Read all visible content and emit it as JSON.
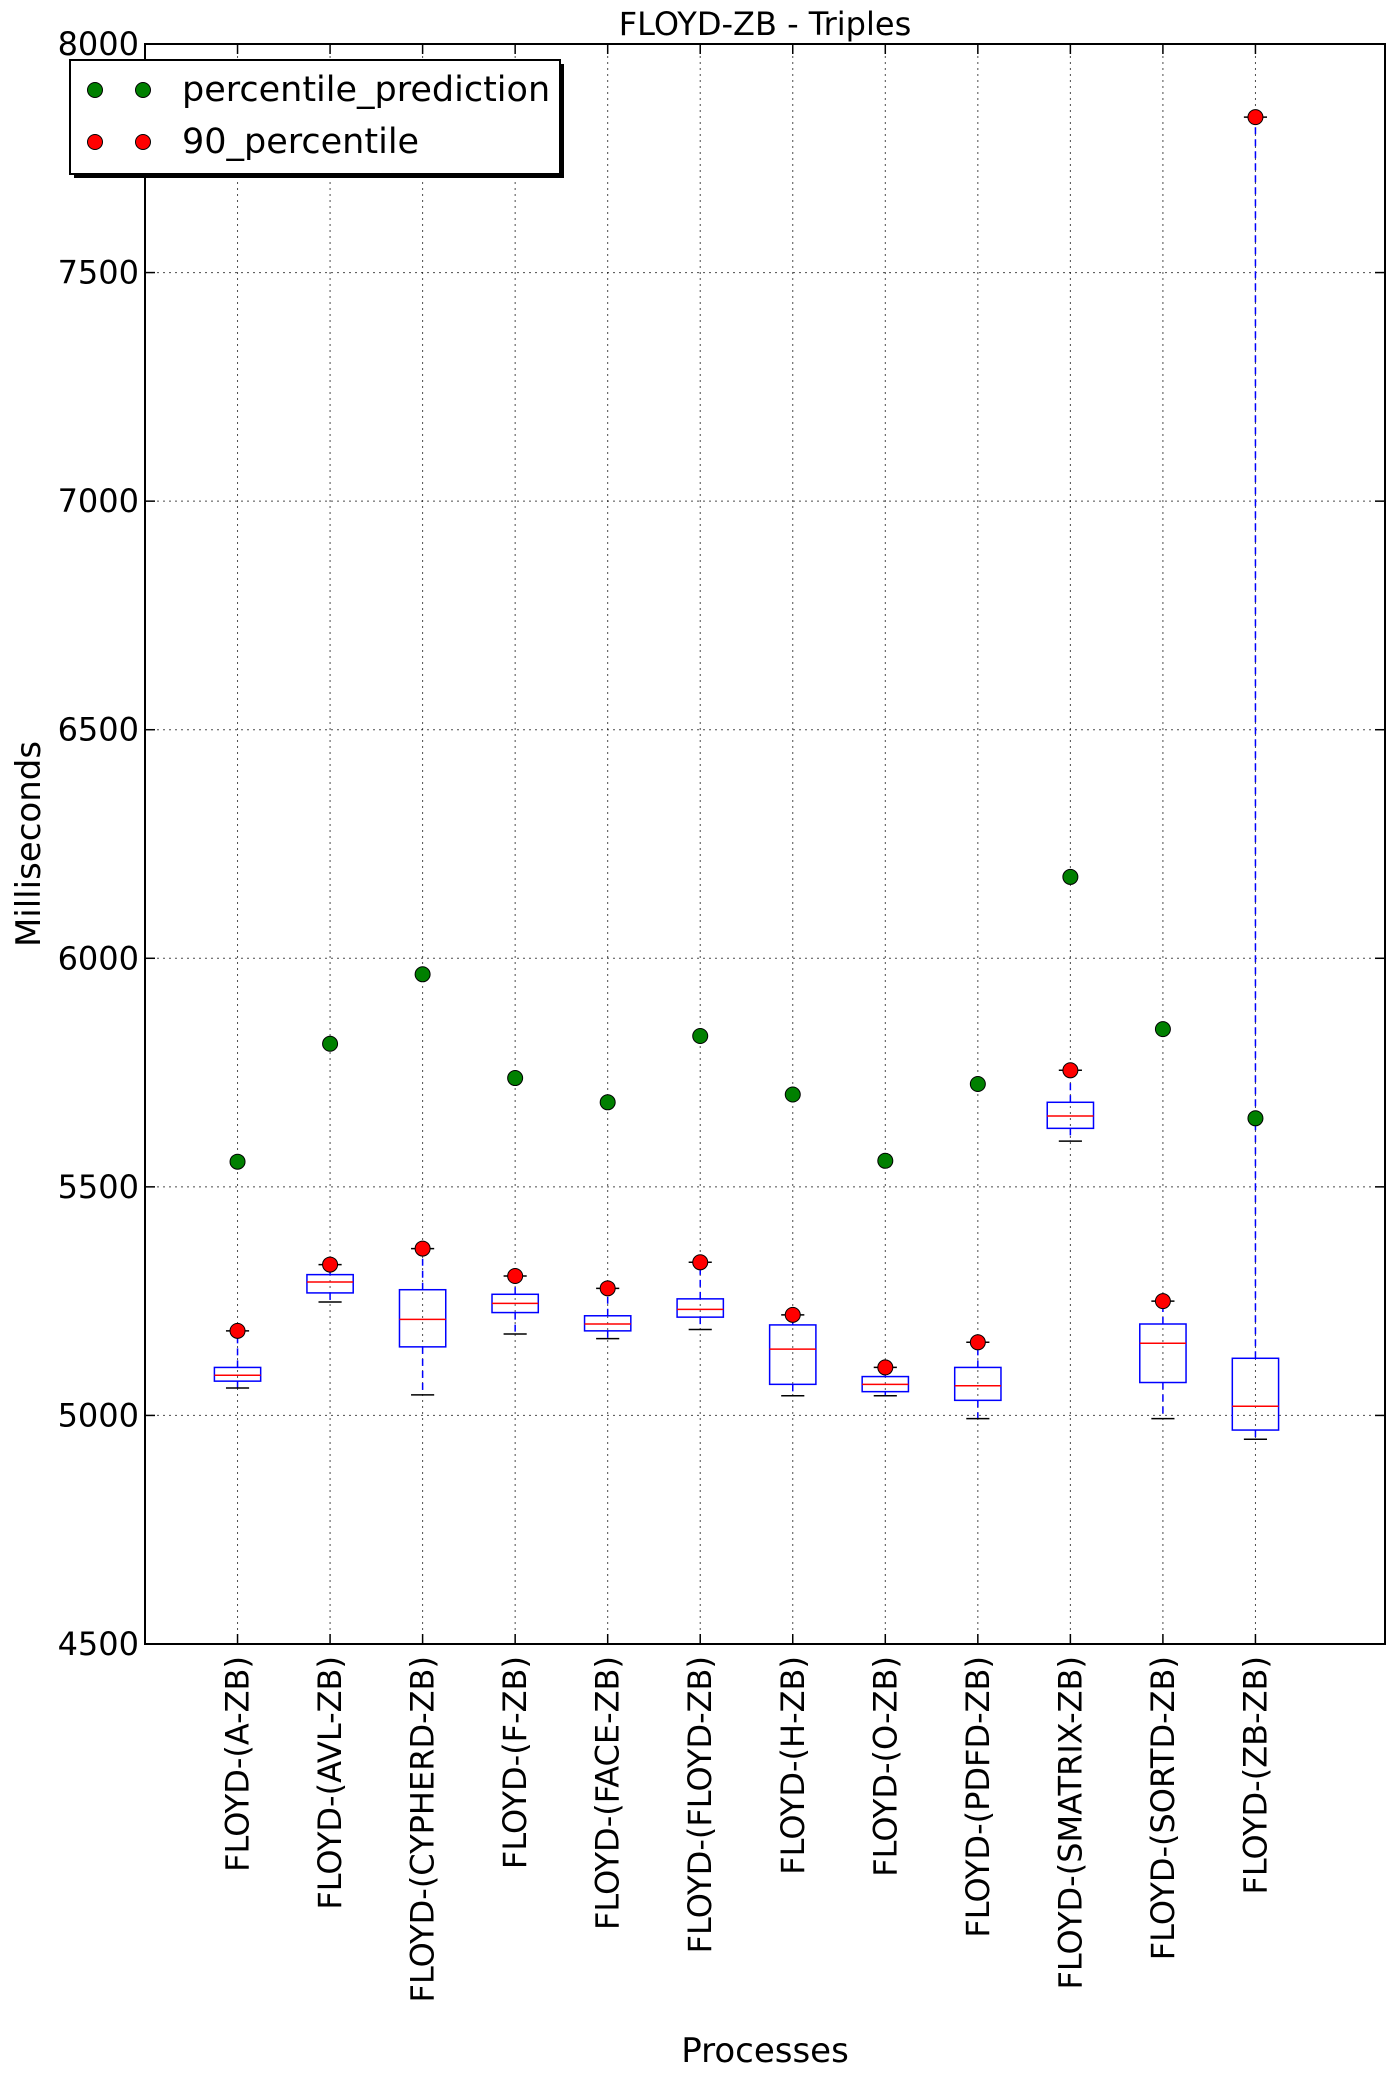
{
  "chart_data": {
    "type": "box",
    "title": "FLOYD-ZB - Triples",
    "xlabel": "Processes",
    "ylabel": "Milliseconds",
    "ylim": [
      4500,
      8000
    ],
    "yticks": [
      4500,
      5000,
      5500,
      6000,
      6500,
      7000,
      7500,
      8000
    ],
    "grid": true,
    "legend_position": "top-left",
    "legend": [
      {
        "name": "percentile_prediction",
        "color": "#008000"
      },
      {
        "name": "90_percentile",
        "color": "#ff0000"
      }
    ],
    "colors": {
      "box": "#0000ff",
      "median": "#ff0000",
      "whisker": "#0000ff",
      "cap": "#000000"
    },
    "categories": [
      "FLOYD-(A-ZB)",
      "FLOYD-(AVL-ZB)",
      "FLOYD-(CYPHERD-ZB)",
      "FLOYD-(F-ZB)",
      "FLOYD-(FACE-ZB)",
      "FLOYD-(FLOYD-ZB)",
      "FLOYD-(H-ZB)",
      "FLOYD-(O-ZB)",
      "FLOYD-(PDFD-ZB)",
      "FLOYD-(SMATRIX-ZB)",
      "FLOYD-(SORTD-ZB)",
      "FLOYD-(ZB-ZB)"
    ],
    "boxes": [
      {
        "whislo": 5060,
        "q1": 5075,
        "med": 5088,
        "q3": 5105,
        "whishi": 5185
      },
      {
        "whislo": 5248,
        "q1": 5268,
        "med": 5292,
        "q3": 5308,
        "whishi": 5330
      },
      {
        "whislo": 5045,
        "q1": 5150,
        "med": 5210,
        "q3": 5275,
        "whishi": 5365
      },
      {
        "whislo": 5178,
        "q1": 5225,
        "med": 5245,
        "q3": 5265,
        "whishi": 5305
      },
      {
        "whislo": 5168,
        "q1": 5185,
        "med": 5200,
        "q3": 5218,
        "whishi": 5278
      },
      {
        "whislo": 5188,
        "q1": 5215,
        "med": 5232,
        "q3": 5255,
        "whishi": 5335
      },
      {
        "whislo": 5043,
        "q1": 5068,
        "med": 5145,
        "q3": 5198,
        "whishi": 5220
      },
      {
        "whislo": 5043,
        "q1": 5052,
        "med": 5068,
        "q3": 5085,
        "whishi": 5105
      },
      {
        "whislo": 4993,
        "q1": 5033,
        "med": 5065,
        "q3": 5105,
        "whishi": 5160
      },
      {
        "whislo": 5600,
        "q1": 5628,
        "med": 5655,
        "q3": 5685,
        "whishi": 5755
      },
      {
        "whislo": 4993,
        "q1": 5072,
        "med": 5158,
        "q3": 5200,
        "whishi": 5250
      },
      {
        "whislo": 4948,
        "q1": 4968,
        "med": 5020,
        "q3": 5125,
        "whishi": 7840
      }
    ],
    "series": [
      {
        "name": "percentile_prediction",
        "values": [
          5555,
          5813,
          5965,
          5738,
          5685,
          5830,
          5702,
          5557,
          5725,
          6178,
          5845,
          5650
        ]
      },
      {
        "name": "90_percentile",
        "values": [
          5185,
          5330,
          5365,
          5305,
          5278,
          5335,
          5220,
          5105,
          5160,
          5755,
          5250,
          7840
        ]
      }
    ]
  }
}
